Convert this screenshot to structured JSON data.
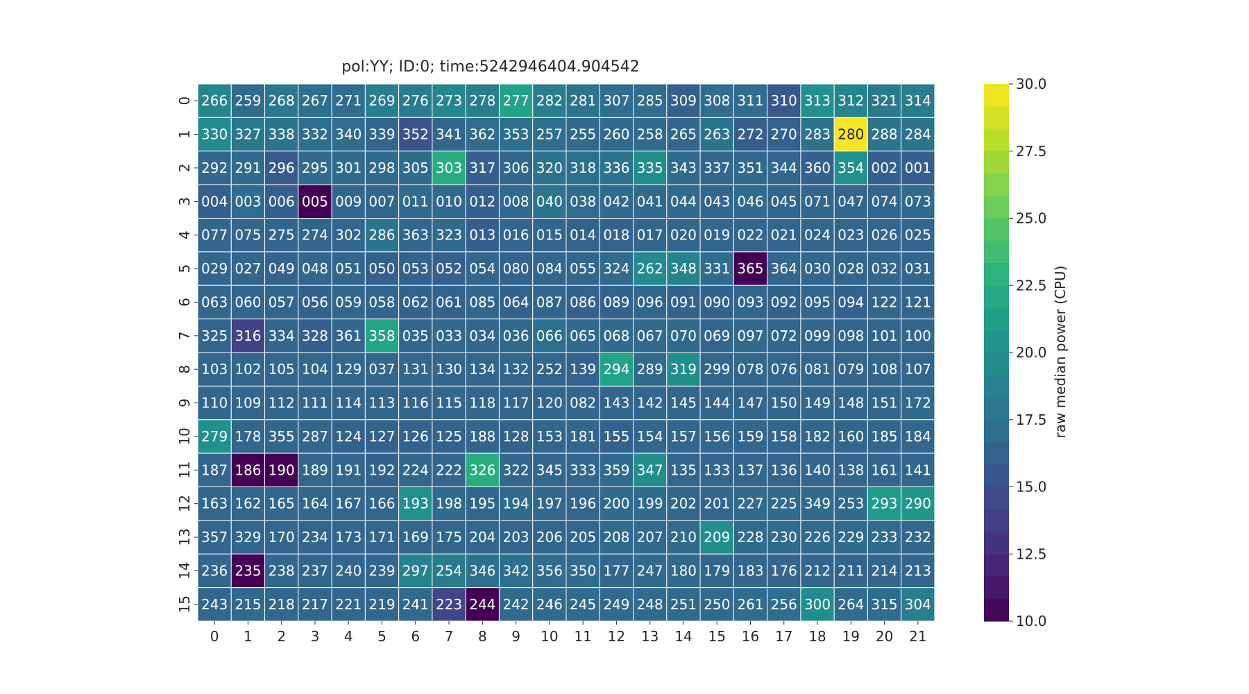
{
  "chart_data": {
    "type": "heatmap",
    "title": "pol:YY; ID:0; time:5242946404.904542",
    "x_ticklabels": [
      "0",
      "1",
      "2",
      "3",
      "4",
      "5",
      "6",
      "7",
      "8",
      "9",
      "10",
      "11",
      "12",
      "13",
      "14",
      "15",
      "16",
      "17",
      "18",
      "19",
      "20",
      "21"
    ],
    "y_ticklabels": [
      "0",
      "1",
      "2",
      "3",
      "4",
      "5",
      "6",
      "7",
      "8",
      "9",
      "10",
      "11",
      "12",
      "13",
      "14",
      "15"
    ],
    "colormap": "viridis",
    "colorbar": {
      "label": "raw median power (CPU)",
      "range": [
        10.0,
        30.0
      ],
      "ticks": [
        "10.0",
        "12.5",
        "15.0",
        "17.5",
        "20.0",
        "22.5",
        "25.0",
        "27.5",
        "30.0"
      ]
    },
    "annotations": [
      [
        "266",
        "259",
        "268",
        "267",
        "271",
        "269",
        "276",
        "273",
        "278",
        "277",
        "282",
        "281",
        "307",
        "285",
        "309",
        "308",
        "311",
        "310",
        "313",
        "312",
        "321",
        "314"
      ],
      [
        "330",
        "327",
        "338",
        "332",
        "340",
        "339",
        "352",
        "341",
        "362",
        "353",
        "257",
        "255",
        "260",
        "258",
        "265",
        "263",
        "272",
        "270",
        "283",
        "280",
        "288",
        "284"
      ],
      [
        "292",
        "291",
        "296",
        "295",
        "301",
        "298",
        "305",
        "303",
        "317",
        "306",
        "320",
        "318",
        "336",
        "335",
        "343",
        "337",
        "351",
        "344",
        "360",
        "354",
        "002",
        "001"
      ],
      [
        "004",
        "003",
        "006",
        "005",
        "009",
        "007",
        "011",
        "010",
        "012",
        "008",
        "040",
        "038",
        "042",
        "041",
        "044",
        "043",
        "046",
        "045",
        "071",
        "047",
        "074",
        "073"
      ],
      [
        "077",
        "075",
        "275",
        "274",
        "302",
        "286",
        "363",
        "323",
        "013",
        "016",
        "015",
        "014",
        "018",
        "017",
        "020",
        "019",
        "022",
        "021",
        "024",
        "023",
        "026",
        "025"
      ],
      [
        "029",
        "027",
        "049",
        "048",
        "051",
        "050",
        "053",
        "052",
        "054",
        "080",
        "084",
        "055",
        "324",
        "262",
        "348",
        "331",
        "365",
        "364",
        "030",
        "028",
        "032",
        "031"
      ],
      [
        "063",
        "060",
        "057",
        "056",
        "059",
        "058",
        "062",
        "061",
        "085",
        "064",
        "087",
        "086",
        "089",
        "096",
        "091",
        "090",
        "093",
        "092",
        "095",
        "094",
        "122",
        "121"
      ],
      [
        "325",
        "316",
        "334",
        "328",
        "361",
        "358",
        "035",
        "033",
        "034",
        "036",
        "066",
        "065",
        "068",
        "067",
        "070",
        "069",
        "097",
        "072",
        "099",
        "098",
        "101",
        "100"
      ],
      [
        "103",
        "102",
        "105",
        "104",
        "129",
        "037",
        "131",
        "130",
        "134",
        "132",
        "252",
        "139",
        "294",
        "289",
        "319",
        "299",
        "078",
        "076",
        "081",
        "079",
        "108",
        "107"
      ],
      [
        "110",
        "109",
        "112",
        "111",
        "114",
        "113",
        "116",
        "115",
        "118",
        "117",
        "120",
        "082",
        "143",
        "142",
        "145",
        "144",
        "147",
        "150",
        "149",
        "148",
        "151",
        "172"
      ],
      [
        "279",
        "178",
        "355",
        "287",
        "124",
        "127",
        "126",
        "125",
        "188",
        "128",
        "153",
        "181",
        "155",
        "154",
        "157",
        "156",
        "159",
        "158",
        "182",
        "160",
        "185",
        "184"
      ],
      [
        "187",
        "186",
        "190",
        "189",
        "191",
        "192",
        "224",
        "222",
        "326",
        "322",
        "345",
        "333",
        "359",
        "347",
        "135",
        "133",
        "137",
        "136",
        "140",
        "138",
        "161",
        "141"
      ],
      [
        "163",
        "162",
        "165",
        "164",
        "167",
        "166",
        "193",
        "198",
        "195",
        "194",
        "197",
        "196",
        "200",
        "199",
        "202",
        "201",
        "227",
        "225",
        "349",
        "253",
        "293",
        "290"
      ],
      [
        "357",
        "329",
        "170",
        "234",
        "173",
        "171",
        "169",
        "175",
        "204",
        "203",
        "206",
        "205",
        "208",
        "207",
        "210",
        "209",
        "228",
        "230",
        "226",
        "229",
        "233",
        "232"
      ],
      [
        "236",
        "235",
        "238",
        "237",
        "240",
        "239",
        "297",
        "254",
        "346",
        "342",
        "356",
        "350",
        "177",
        "247",
        "180",
        "179",
        "183",
        "176",
        "212",
        "211",
        "214",
        "213"
      ],
      [
        "243",
        "215",
        "218",
        "217",
        "221",
        "219",
        "241",
        "223",
        "244",
        "242",
        "246",
        "245",
        "249",
        "248",
        "251",
        "250",
        "261",
        "256",
        "300",
        "264",
        "315",
        "304"
      ]
    ],
    "values": [
      [
        19.2,
        17.0,
        18.0,
        17.2,
        17.0,
        18.5,
        18.2,
        19.2,
        18.5,
        21.5,
        18.5,
        17.5,
        17.0,
        17.0,
        16.0,
        17.0,
        17.0,
        15.5,
        20.0,
        19.0,
        18.0,
        18.2
      ],
      [
        19.5,
        18.0,
        17.5,
        17.2,
        17.0,
        16.5,
        15.0,
        16.5,
        17.0,
        17.2,
        17.2,
        16.8,
        16.8,
        16.8,
        16.5,
        17.5,
        16.0,
        16.2,
        17.5,
        29.8,
        17.5,
        17.5
      ],
      [
        16.5,
        16.8,
        15.5,
        16.8,
        17.0,
        16.8,
        17.0,
        22.5,
        16.0,
        16.5,
        17.5,
        17.2,
        17.5,
        19.8,
        16.8,
        16.5,
        16.8,
        16.5,
        16.2,
        20.0,
        16.0,
        16.0
      ],
      [
        16.0,
        17.0,
        16.0,
        10.0,
        16.5,
        16.5,
        16.8,
        16.8,
        16.0,
        16.8,
        17.5,
        17.0,
        16.8,
        16.8,
        16.8,
        16.5,
        16.8,
        16.5,
        16.5,
        16.5,
        16.5,
        16.8
      ],
      [
        16.5,
        16.5,
        16.5,
        16.5,
        16.5,
        17.8,
        16.5,
        16.8,
        16.0,
        16.5,
        16.5,
        16.2,
        16.2,
        16.5,
        16.5,
        16.5,
        16.5,
        16.5,
        16.5,
        16.5,
        16.5,
        16.5
      ],
      [
        16.5,
        16.5,
        16.2,
        16.5,
        16.5,
        16.0,
        16.2,
        16.0,
        16.5,
        16.2,
        16.5,
        16.5,
        16.8,
        19.5,
        19.0,
        17.0,
        10.0,
        16.5,
        16.5,
        16.5,
        16.5,
        16.5
      ],
      [
        16.5,
        16.5,
        16.5,
        16.2,
        16.5,
        16.5,
        16.2,
        16.2,
        16.5,
        16.2,
        16.5,
        16.2,
        16.2,
        16.5,
        16.2,
        16.2,
        16.5,
        16.2,
        16.5,
        16.2,
        16.5,
        16.5
      ],
      [
        16.5,
        14.0,
        16.5,
        16.0,
        16.5,
        21.8,
        16.5,
        16.8,
        16.5,
        16.8,
        17.2,
        16.8,
        16.8,
        16.8,
        16.8,
        16.5,
        16.8,
        16.5,
        16.5,
        16.5,
        16.5,
        16.5
      ],
      [
        16.5,
        16.5,
        16.5,
        16.5,
        16.5,
        16.5,
        16.5,
        16.5,
        16.5,
        16.5,
        16.5,
        16.2,
        21.5,
        16.8,
        19.8,
        16.5,
        16.5,
        16.5,
        16.5,
        16.5,
        16.5,
        16.5
      ],
      [
        16.5,
        16.5,
        16.5,
        16.5,
        16.5,
        16.5,
        16.5,
        16.5,
        16.5,
        16.5,
        16.5,
        16.5,
        16.5,
        16.5,
        16.5,
        16.5,
        16.5,
        16.5,
        16.5,
        16.5,
        16.5,
        16.8
      ],
      [
        20.0,
        16.5,
        16.5,
        16.5,
        16.2,
        16.2,
        16.2,
        16.2,
        16.5,
        16.2,
        16.5,
        16.5,
        16.2,
        16.5,
        16.5,
        16.5,
        16.5,
        16.5,
        16.5,
        16.5,
        16.5,
        16.5
      ],
      [
        16.5,
        10.0,
        10.0,
        16.5,
        16.5,
        16.2,
        16.5,
        16.5,
        22.5,
        16.5,
        16.5,
        16.5,
        16.8,
        19.8,
        16.5,
        16.5,
        16.5,
        16.5,
        16.5,
        16.5,
        16.5,
        16.5
      ],
      [
        16.5,
        16.5,
        16.5,
        16.5,
        16.5,
        16.5,
        20.0,
        16.8,
        16.5,
        16.8,
        16.5,
        16.5,
        16.8,
        16.8,
        16.5,
        16.5,
        16.8,
        16.8,
        16.8,
        16.8,
        21.0,
        20.5
      ],
      [
        16.5,
        16.5,
        16.5,
        16.5,
        16.5,
        16.5,
        16.5,
        16.5,
        16.5,
        16.5,
        16.5,
        16.5,
        16.8,
        16.8,
        16.8,
        19.8,
        16.8,
        16.8,
        16.8,
        16.8,
        16.8,
        16.5
      ],
      [
        16.5,
        10.0,
        16.5,
        16.5,
        16.5,
        16.5,
        18.8,
        18.2,
        17.2,
        17.2,
        17.0,
        17.0,
        16.5,
        16.8,
        16.8,
        16.5,
        16.5,
        16.5,
        16.5,
        16.5,
        16.5,
        16.5
      ],
      [
        16.5,
        16.8,
        16.5,
        16.5,
        16.5,
        16.5,
        16.8,
        14.2,
        10.0,
        16.8,
        16.8,
        16.8,
        16.8,
        16.8,
        16.8,
        16.8,
        17.0,
        17.2,
        19.8,
        17.0,
        17.0,
        18.5
      ]
    ]
  }
}
